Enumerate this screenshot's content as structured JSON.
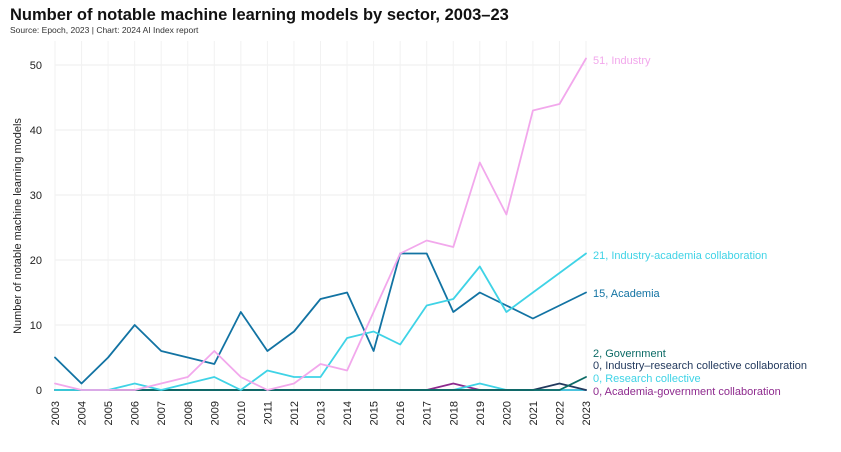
{
  "header": {
    "title": "Number of notable machine learning models by sector, 2003–23",
    "subtitle": "Source: Epoch, 2023 | Chart: 2024 AI Index report"
  },
  "chart_data": {
    "type": "line",
    "title": "Number of notable machine learning models by sector, 2003–23",
    "xlabel": "",
    "ylabel": "Number of notable machine learning models",
    "x": [
      "2003",
      "2004",
      "2005",
      "2006",
      "2007",
      "2008",
      "2009",
      "2010",
      "2011",
      "2012",
      "2013",
      "2014",
      "2015",
      "2016",
      "2017",
      "2018",
      "2019",
      "2020",
      "2021",
      "2022",
      "2023"
    ],
    "ylim": [
      0,
      52
    ],
    "yticks": [
      0,
      10,
      20,
      30,
      40,
      50
    ],
    "grid": true,
    "series": [
      {
        "name": "Industry",
        "end_label": "51, Industry",
        "color": "#f2a8ec",
        "values": [
          1,
          0,
          0,
          0,
          1,
          2,
          6,
          2,
          0,
          1,
          4,
          3,
          12,
          21,
          23,
          22,
          35,
          27,
          43,
          44,
          51
        ]
      },
      {
        "name": "Industry-academia collaboration",
        "end_label": "21, Industry-academia collaboration",
        "color": "#3fd3e6",
        "values": [
          0,
          0,
          0,
          1,
          0,
          1,
          2,
          0,
          3,
          2,
          2,
          8,
          9,
          7,
          13,
          14,
          19,
          12,
          15,
          18,
          21
        ]
      },
      {
        "name": "Academia",
        "end_label": "15, Academia",
        "color": "#1273a3",
        "values": [
          5,
          1,
          5,
          10,
          6,
          5,
          4,
          12,
          6,
          9,
          14,
          15,
          6,
          21,
          21,
          12,
          15,
          13,
          11,
          13,
          15
        ]
      },
      {
        "name": "Government",
        "end_label": "2, Government",
        "color": "#0c6b66",
        "values": [
          0,
          0,
          0,
          0,
          0,
          0,
          0,
          0,
          0,
          0,
          0,
          0,
          0,
          0,
          0,
          0,
          0,
          0,
          0,
          0,
          2
        ]
      },
      {
        "name": "Industry–research collective collaboration",
        "end_label": "0, Industry–research collective collaboration",
        "color": "#233a5e",
        "values": [
          0,
          0,
          0,
          0,
          0,
          0,
          0,
          0,
          0,
          0,
          0,
          0,
          0,
          0,
          0,
          0,
          0,
          0,
          0,
          1,
          0
        ]
      },
      {
        "name": "Research collective",
        "end_label": "0, Research collective",
        "color": "#3fd3e6",
        "values": [
          0,
          0,
          0,
          0,
          0,
          0,
          0,
          0,
          0,
          0,
          0,
          0,
          0,
          0,
          0,
          0,
          1,
          0,
          0,
          0,
          0
        ]
      },
      {
        "name": "Academia-government collaboration",
        "end_label": "0, Academia-government collaboration",
        "color": "#8e2a8e",
        "values": [
          0,
          0,
          0,
          0,
          0,
          0,
          0,
          0,
          0,
          0,
          0,
          0,
          0,
          0,
          0,
          1,
          0,
          0,
          0,
          0,
          0
        ]
      }
    ]
  }
}
